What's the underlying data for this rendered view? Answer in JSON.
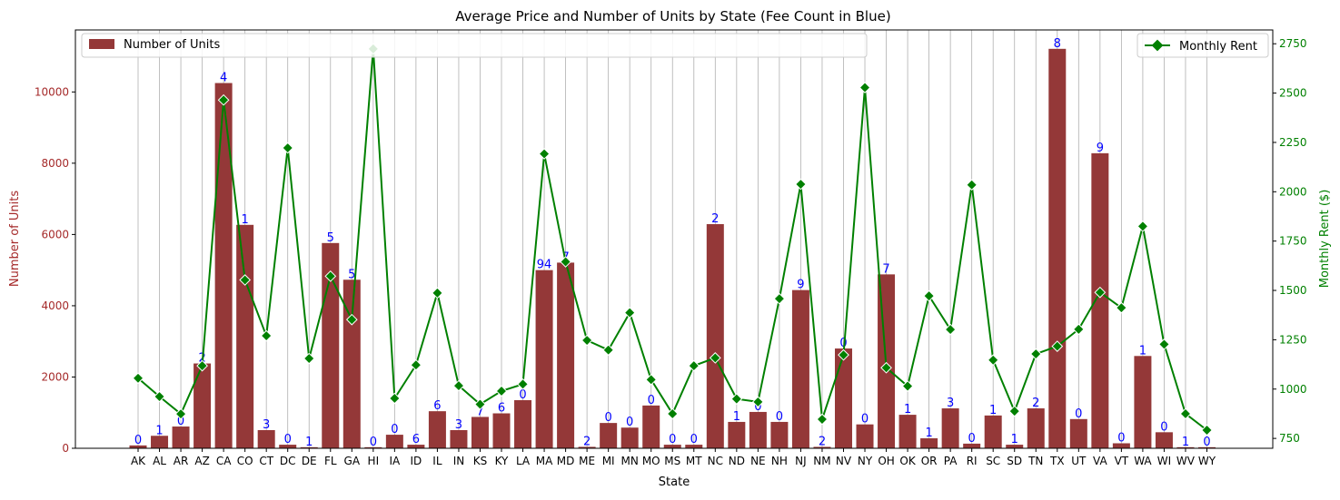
{
  "chart_data": {
    "type": "bar",
    "title": "Average Price and Number of Units by State (Fee Count in Blue)",
    "xlabel": "State",
    "ylabel": "Number of Units",
    "y2label": "Monthly Rent ($)",
    "categories": [
      "AK",
      "AL",
      "AR",
      "AZ",
      "CA",
      "CO",
      "CT",
      "DC",
      "DE",
      "FL",
      "GA",
      "HI",
      "IA",
      "ID",
      "IL",
      "IN",
      "KS",
      "KY",
      "LA",
      "MA",
      "MD",
      "ME",
      "MI",
      "MN",
      "MO",
      "MS",
      "MT",
      "NC",
      "ND",
      "NE",
      "NH",
      "NJ",
      "NM",
      "NV",
      "NY",
      "OH",
      "OK",
      "OR",
      "PA",
      "RI",
      "SC",
      "SD",
      "TN",
      "TX",
      "UT",
      "VA",
      "VT",
      "WA",
      "WI",
      "WV",
      "WY"
    ],
    "series": [
      {
        "name": "Number of Units",
        "axis": "left",
        "color": "#943838",
        "values": [
          80,
          350,
          610,
          2380,
          10250,
          6270,
          510,
          100,
          30,
          5760,
          4730,
          30,
          380,
          100,
          1040,
          510,
          880,
          980,
          1350,
          5000,
          5210,
          40,
          710,
          580,
          1200,
          100,
          100,
          6290,
          740,
          1020,
          740,
          4440,
          40,
          2800,
          670,
          4880,
          940,
          280,
          1120,
          130,
          920,
          100,
          1120,
          11210,
          820,
          8280,
          140,
          2590,
          450,
          30,
          30
        ]
      },
      {
        "name": "Monthly Rent",
        "axis": "right",
        "color": "#008000",
        "values": [
          1055,
          962,
          874,
          1118,
          2465,
          1553,
          1270,
          2222,
          1155,
          1572,
          1352,
          2724,
          953,
          1122,
          1487,
          1017,
          923,
          990,
          1025,
          2192,
          1645,
          1247,
          1198,
          1387,
          1048,
          875,
          1118,
          1158,
          950,
          935,
          1458,
          2038,
          847,
          1173,
          2528,
          1108,
          1015,
          1472,
          1302,
          2035,
          1147,
          888,
          1178,
          1217,
          1303,
          1490,
          1412,
          1825,
          1227,
          875,
          792
        ]
      }
    ],
    "fee_counts": [
      "0",
      "1",
      "0",
      "2",
      "4",
      "1",
      "3",
      "0",
      "1",
      "5",
      "5",
      "0",
      "0",
      "6",
      "6",
      "3",
      "7",
      "6",
      "0",
      "94",
      "7",
      "2",
      "0",
      "0",
      "0",
      "0",
      "0",
      "2",
      "1",
      "0",
      "0",
      "9",
      "2",
      "0",
      "0",
      "7",
      "1",
      "1",
      "3",
      "0",
      "1",
      "1",
      "2",
      "8",
      "0",
      "9",
      "0",
      "1",
      "0",
      "1",
      "0"
    ],
    "ylim": [
      0,
      11740
    ],
    "y2lim": [
      700,
      2820
    ],
    "yticks": [
      "0",
      "2000",
      "4000",
      "6000",
      "8000",
      "10000"
    ],
    "y2ticks": [
      "750",
      "1000",
      "1250",
      "1500",
      "1750",
      "2000",
      "2250",
      "2500",
      "2750"
    ],
    "grid": "vertical",
    "legend_left": "top-left",
    "legend_right": "top-right",
    "colors": {
      "left_axis": "#a52a2a",
      "right_axis": "#008000",
      "fee_label": "#0000ff"
    }
  }
}
